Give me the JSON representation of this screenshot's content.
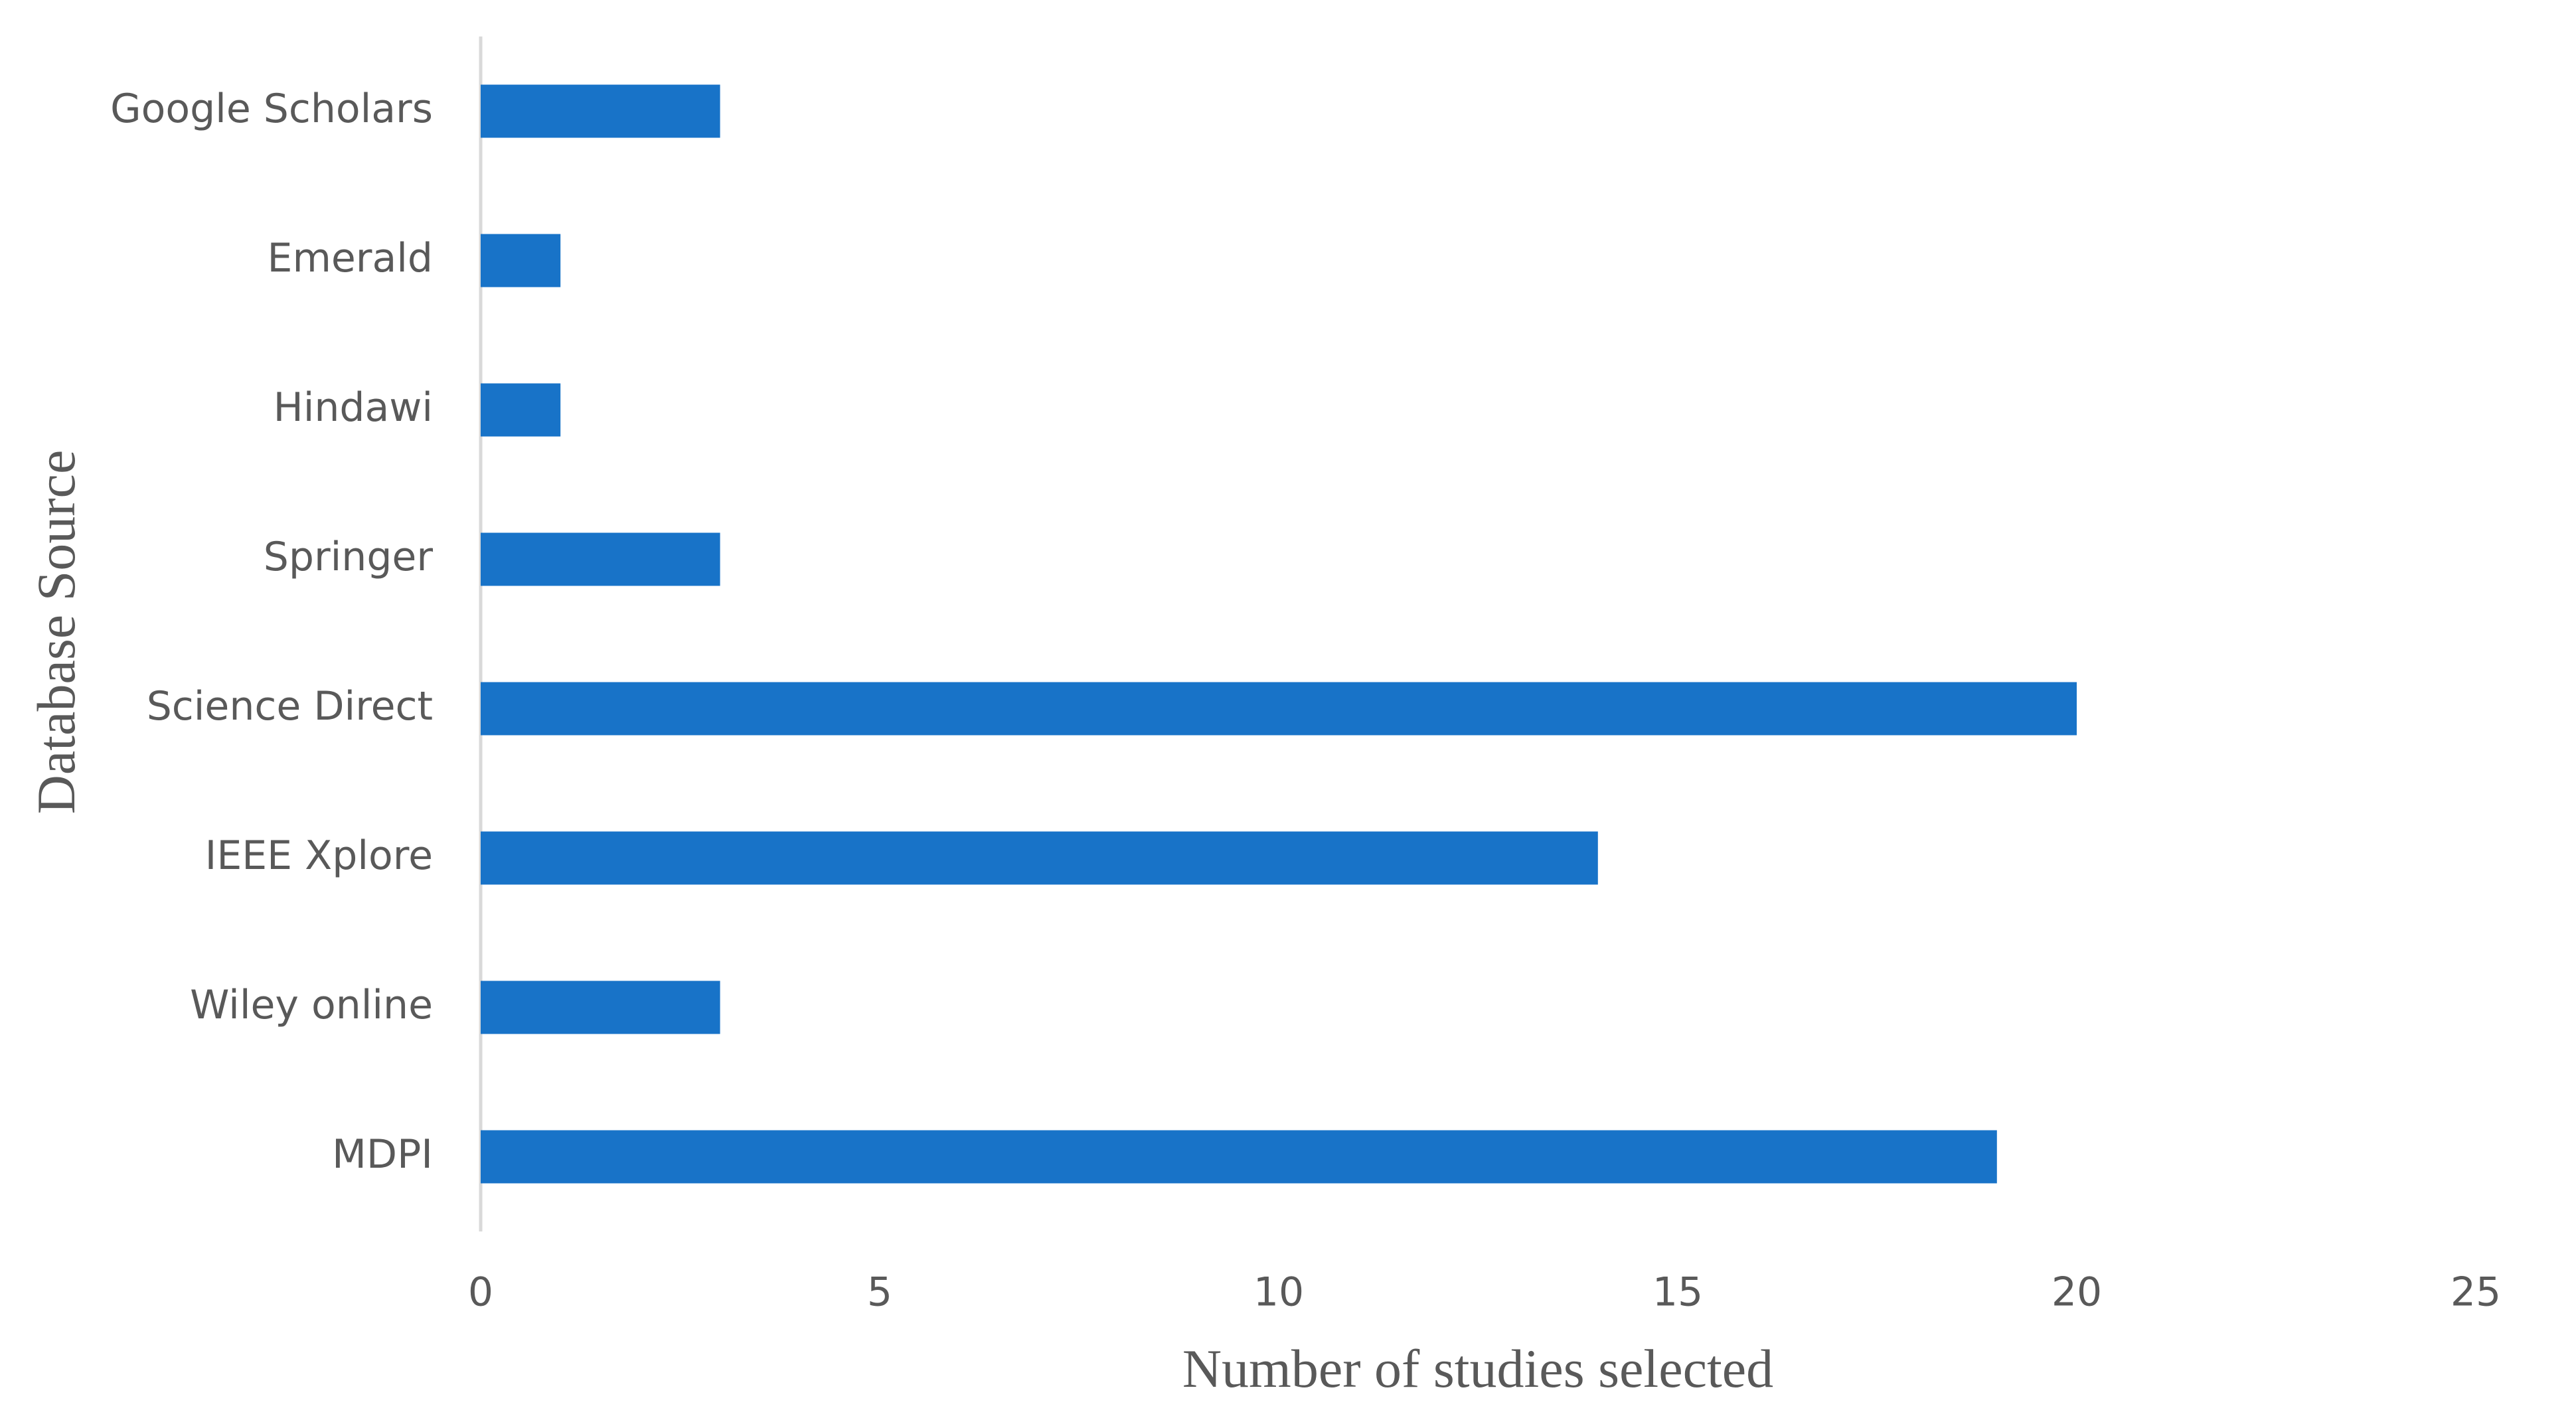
{
  "chart_data": {
    "type": "hbar",
    "x_label": "Number of studies selected",
    "y_label": "Database Source",
    "categories": [
      "Google Scholars",
      "Emerald",
      "Hindawi",
      "Springer",
      "Science Direct",
      "IEEE Xplore",
      "Wiley online",
      "MDPI"
    ],
    "values": [
      3,
      1,
      1,
      3,
      20,
      14,
      3,
      19
    ],
    "color": "#1873c8",
    "xlim": [
      0,
      25
    ],
    "xticks": [
      0,
      5,
      10,
      15,
      20,
      25
    ],
    "grid": false
  }
}
